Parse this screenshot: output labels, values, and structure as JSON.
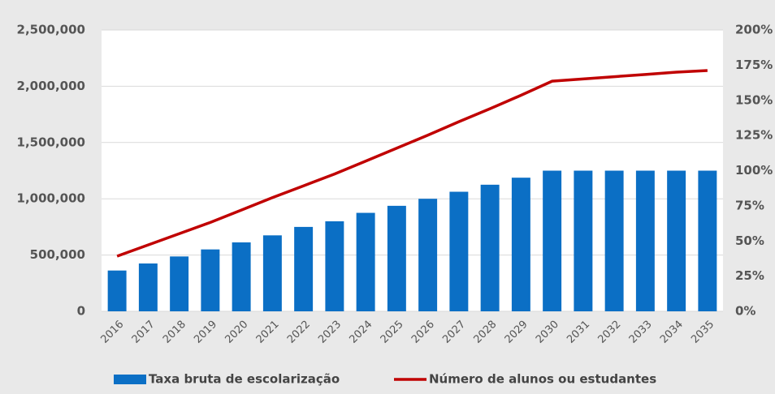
{
  "chart_data": {
    "type": "bar-line",
    "categories": [
      "2016",
      "2017",
      "2018",
      "2019",
      "2020",
      "2021",
      "2022",
      "2023",
      "2024",
      "2025",
      "2026",
      "2027",
      "2028",
      "2029",
      "2030",
      "2031",
      "2032",
      "2033",
      "2034",
      "2035"
    ],
    "series": [
      {
        "name": "Taxa bruta de escolarização",
        "type": "bar",
        "axis": "y2",
        "color": "#0b6fc5",
        "values": [
          29,
          34,
          39,
          44,
          49,
          54,
          60,
          64,
          70,
          75,
          80,
          85,
          90,
          95,
          100,
          100,
          100,
          100,
          100,
          100
        ]
      },
      {
        "name": "Número de alunos ou estudantes",
        "type": "line",
        "axis": "y",
        "color": "#c00000",
        "values": [
          490000,
          590000,
          690000,
          790000,
          900000,
          1010000,
          1115000,
          1220000,
          1335000,
          1450000,
          1565000,
          1685000,
          1800000,
          1920000,
          2045000,
          2065000,
          2085000,
          2105000,
          2125000,
          2140000
        ]
      }
    ],
    "ylim": [
      0,
      2500000
    ],
    "yticks": [
      0,
      {
        "value": 500000,
        "label": "500,000"
      },
      {
        "value": 1000000,
        "label": "1,000,000"
      },
      {
        "value": 1500000,
        "label": "1,500,000"
      },
      {
        "value": 2000000,
        "label": "2,000,000"
      },
      {
        "value": 2500000,
        "label": "2,500,000"
      }
    ],
    "y2lim": [
      0,
      200
    ],
    "y2ticks": [
      {
        "value": 0,
        "label": "0%"
      },
      {
        "value": 25,
        "label": "25%"
      },
      {
        "value": 50,
        "label": "50%"
      },
      {
        "value": 75,
        "label": "75%"
      },
      {
        "value": 100,
        "label": "100%"
      },
      {
        "value": 125,
        "label": "125%"
      },
      {
        "value": 150,
        "label": "150%"
      },
      {
        "value": 175,
        "label": "175%"
      },
      {
        "value": 200,
        "label": "200%"
      }
    ],
    "grid": true,
    "legend": "bottom"
  }
}
